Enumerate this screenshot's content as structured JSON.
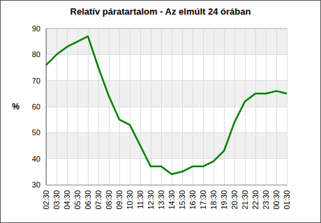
{
  "chart_data": {
    "type": "line",
    "title": "Relatív páratartalom - Az elmúlt 24 órában",
    "y_label": "%",
    "categories": [
      "02:30",
      "03:30",
      "04:30",
      "05:30",
      "06:30",
      "07:30",
      "08:30",
      "09:30",
      "10:30",
      "11:30",
      "12:30",
      "13:30",
      "14:30",
      "15:30",
      "16:30",
      "17:30",
      "18:30",
      "19:30",
      "20:30",
      "21:30",
      "22:30",
      "23:30",
      "00:30",
      "01:30"
    ],
    "values": [
      76,
      80,
      83,
      85,
      87,
      75,
      64,
      55,
      53,
      45,
      37,
      37,
      34,
      35,
      37,
      37,
      39,
      43,
      54,
      62,
      65,
      65,
      66,
      65
    ],
    "color": "#008000",
    "ylim": [
      30,
      90
    ],
    "yticks": [
      30,
      40,
      50,
      60,
      70,
      80,
      90
    ],
    "grid": true
  }
}
